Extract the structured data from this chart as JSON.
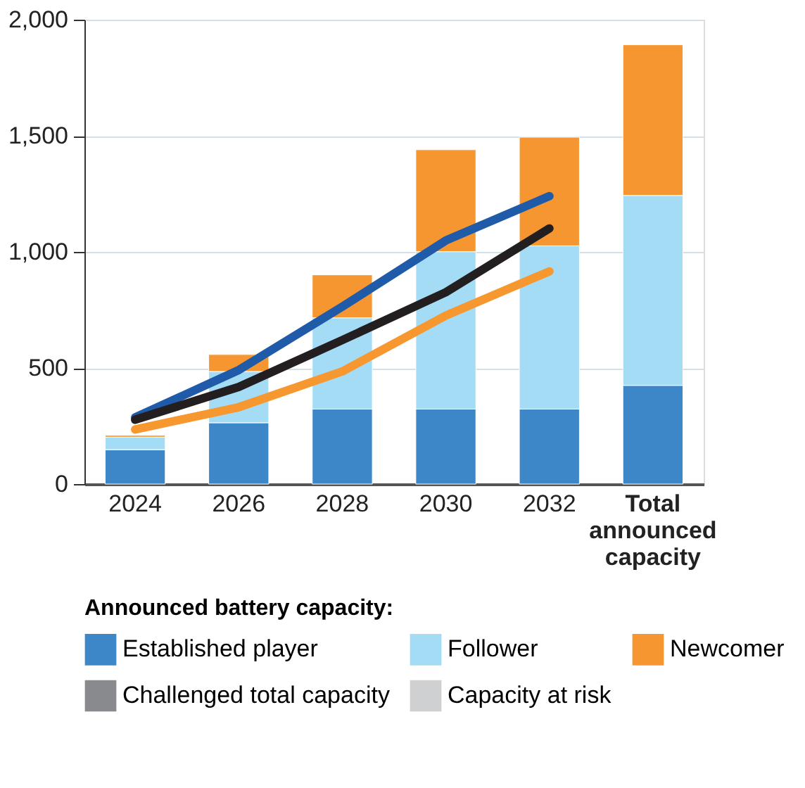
{
  "chart_data": {
    "type": "bar",
    "stacked": true,
    "categories": [
      "2024",
      "2026",
      "2028",
      "2030",
      "2032",
      "Total announced capacity"
    ],
    "legend_title": "Announced battery capacity:",
    "series": [
      {
        "name": "Established player",
        "color": "#3d87c8",
        "values": [
          148,
          264,
          323,
          323,
          323,
          425
        ]
      },
      {
        "name": "Follower",
        "color": "#a5dcf5",
        "values": [
          54,
          221,
          393,
          678,
          703,
          818
        ]
      },
      {
        "name": "Newcomer",
        "color": "#f59630",
        "values": [
          8,
          73,
          185,
          439,
          468,
          649
        ]
      },
      {
        "name": "Challenged total capacity",
        "color": "#898a8d",
        "values": [
          null,
          null,
          null,
          null,
          null,
          null
        ]
      },
      {
        "name": "Capacity at risk",
        "color": "#cfd0d2",
        "values": [
          null,
          null,
          null,
          null,
          null,
          null
        ]
      },
      {
        "type": "line",
        "color": "#1f5ba8",
        "values": [
          287,
          491,
          764,
          1049,
          1240,
          null
        ]
      },
      {
        "type": "line",
        "color": "#231f20",
        "values": [
          277,
          418,
          620,
          826,
          1101,
          null
        ]
      },
      {
        "type": "line",
        "color": "#f7972f",
        "values": [
          235,
          331,
          485,
          726,
          916,
          null
        ]
      }
    ],
    "ylim": [
      0,
      2000
    ],
    "yticks": [
      0,
      500,
      {
        "value": 1000,
        "label": "1,000"
      },
      {
        "value": 1500,
        "label": "1,500"
      },
      {
        "value": 2000,
        "label": "2,000"
      }
    ],
    "grid": "y",
    "legend": "bottom"
  }
}
